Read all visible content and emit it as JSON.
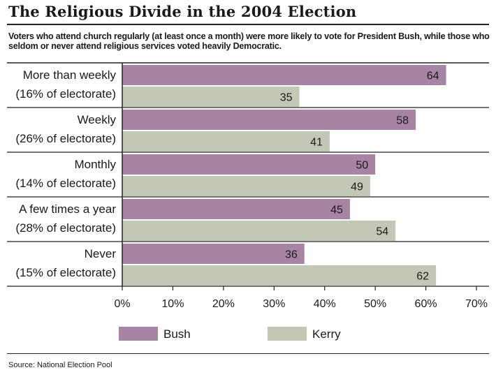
{
  "title": "The Religious Divide in the 2004 Election",
  "subtitle": "Voters who attend church regularly (at least once a month) were more likely to vote for President Bush, while those who seldom or never attend religious services voted heavily Democratic.",
  "source": "Source: National Election Pool",
  "chart_data": {
    "type": "bar",
    "orientation": "horizontal",
    "categories": [
      {
        "name": "More than weekly",
        "share": "(16% of electorate)"
      },
      {
        "name": "Weekly",
        "share": "(26% of electorate)"
      },
      {
        "name": "Monthly",
        "share": "(14% of electorate)"
      },
      {
        "name": "A few times a year",
        "share": "(28% of electorate)"
      },
      {
        "name": "Never",
        "share": "(15% of electorate)"
      }
    ],
    "series": [
      {
        "name": "Bush",
        "color": "#a884a4",
        "values": [
          64,
          58,
          50,
          45,
          36
        ]
      },
      {
        "name": "Kerry",
        "color": "#c3c8b6",
        "values": [
          35,
          41,
          49,
          54,
          62
        ]
      }
    ],
    "xlim": [
      0,
      70
    ],
    "xticks": [
      "0%",
      "10%",
      "20%",
      "30%",
      "40%",
      "50%",
      "60%",
      "70%"
    ],
    "legend_position": "bottom"
  }
}
